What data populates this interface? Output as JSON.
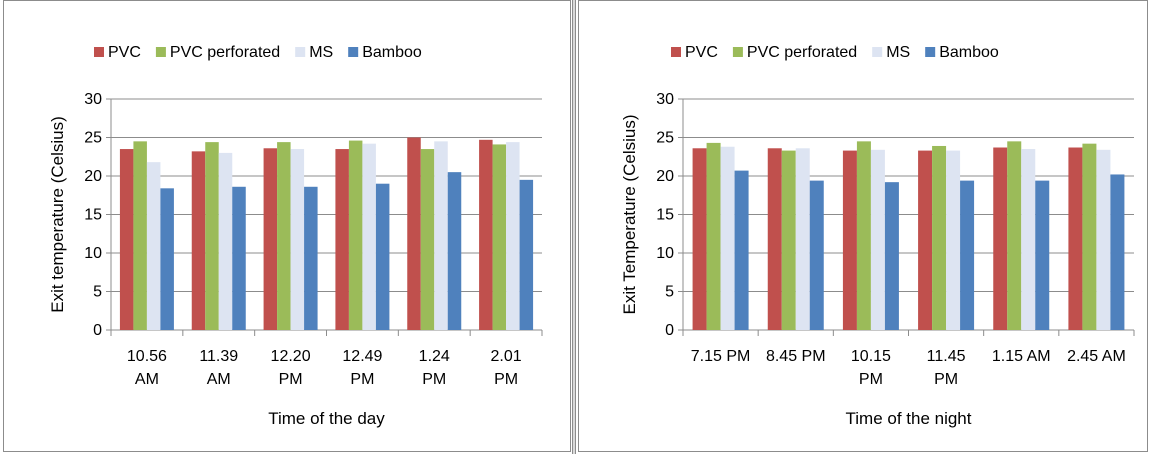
{
  "series_colors": [
    "#c0504d",
    "#9bbb59",
    "#dde4f2",
    "#4f81bd"
  ],
  "chart_data": [
    {
      "type": "bar",
      "title": "",
      "xlabel": "Time of the day",
      "ylabel": "Exit temperature (Celsius)",
      "ylim": [
        0,
        30
      ],
      "yticks": [
        0,
        5,
        10,
        15,
        20,
        25,
        30
      ],
      "grid": true,
      "legend_position": "top",
      "categories": [
        [
          "10.56",
          "AM"
        ],
        [
          "11.39",
          "AM"
        ],
        [
          "12.20",
          "PM"
        ],
        [
          "12.49",
          "PM"
        ],
        [
          "1.24",
          "PM"
        ],
        [
          "2.01",
          "PM"
        ]
      ],
      "series": [
        {
          "name": "PVC",
          "values": [
            23.5,
            23.2,
            23.6,
            23.5,
            25.0,
            24.7
          ]
        },
        {
          "name": "PVC perforated",
          "values": [
            24.5,
            24.4,
            24.4,
            24.6,
            23.5,
            24.1
          ]
        },
        {
          "name": "MS",
          "values": [
            21.8,
            23.0,
            23.5,
            24.2,
            24.5,
            24.4
          ]
        },
        {
          "name": "Bamboo",
          "values": [
            18.4,
            18.6,
            18.6,
            19.0,
            20.5,
            19.5
          ]
        }
      ]
    },
    {
      "type": "bar",
      "title": "",
      "xlabel": "Time of the night",
      "ylabel": "Exit Temperature (Celsius)",
      "ylim": [
        0,
        30
      ],
      "yticks": [
        0,
        5,
        10,
        15,
        20,
        25,
        30
      ],
      "grid": true,
      "legend_position": "top",
      "categories": [
        [
          "7.15 PM"
        ],
        [
          "8.45 PM"
        ],
        [
          "10.15",
          "PM"
        ],
        [
          "11.45",
          "PM"
        ],
        [
          "1.15 AM"
        ],
        [
          "2.45 AM"
        ]
      ],
      "series": [
        {
          "name": "PVC",
          "values": [
            23.6,
            23.6,
            23.3,
            23.3,
            23.7,
            23.7
          ]
        },
        {
          "name": "PVC perforated",
          "values": [
            24.3,
            23.3,
            24.5,
            23.9,
            24.5,
            24.2
          ]
        },
        {
          "name": "MS",
          "values": [
            23.8,
            23.6,
            23.4,
            23.3,
            23.5,
            23.4
          ]
        },
        {
          "name": "Bamboo",
          "values": [
            20.7,
            19.4,
            19.2,
            19.4,
            19.4,
            20.2
          ]
        }
      ]
    }
  ]
}
